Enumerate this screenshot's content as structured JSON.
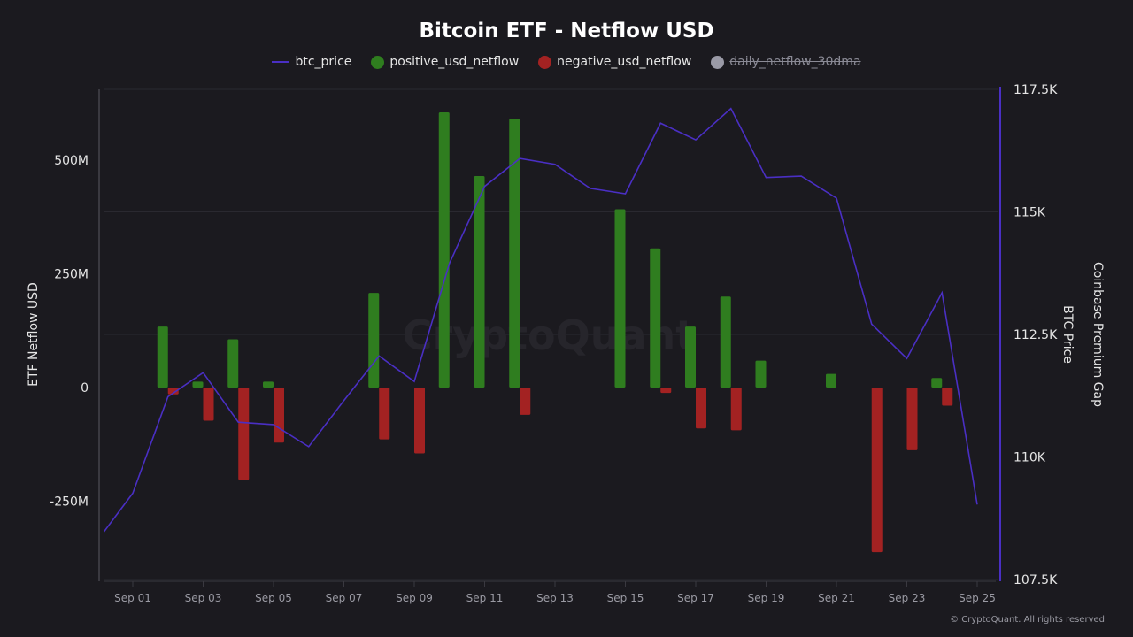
{
  "chart_data": {
    "type": "bar",
    "title": "Bitcoin ETF - Netflow USD",
    "legend": [
      {
        "name": "btc_price",
        "symbol": "line",
        "color": "#4a2fc4",
        "active": true
      },
      {
        "name": "positive_usd_netflow",
        "symbol": "circle",
        "color": "#2f7d1f",
        "active": true
      },
      {
        "name": "negative_usd_netflow",
        "symbol": "circle",
        "color": "#a32222",
        "active": true
      },
      {
        "name": "daily_netflow_30dma",
        "symbol": "circle",
        "color": "#9a9aa6",
        "active": false
      }
    ],
    "legend_placement": "top-center",
    "x_dates": [
      "2025-08-31",
      "2025-09-01",
      "2025-09-02",
      "2025-09-03",
      "2025-09-04",
      "2025-09-05",
      "2025-09-06",
      "2025-09-07",
      "2025-09-08",
      "2025-09-09",
      "2025-09-10",
      "2025-09-11",
      "2025-09-12",
      "2025-09-13",
      "2025-09-14",
      "2025-09-15",
      "2025-09-16",
      "2025-09-17",
      "2025-09-18",
      "2025-09-19",
      "2025-09-20",
      "2025-09-21",
      "2025-09-22",
      "2025-09-23",
      "2025-09-24",
      "2025-09-25"
    ],
    "x_tick_labels": [
      "Sep 01",
      "Sep 03",
      "Sep 05",
      "Sep 07",
      "Sep 09",
      "Sep 11",
      "Sep 13",
      "Sep 15",
      "Sep 17",
      "Sep 19",
      "Sep 21",
      "Sep 23",
      "Sep 25"
    ],
    "series": [
      {
        "name": "positive_usd_netflow",
        "axis": "left",
        "unit": "M USD",
        "type": "bar",
        "values": [
          0,
          0,
          134,
          13,
          106,
          13,
          0,
          0,
          208,
          0,
          605,
          465,
          591,
          0,
          0,
          392,
          306,
          134,
          200,
          59,
          0,
          30,
          0,
          0,
          21,
          0
        ]
      },
      {
        "name": "negative_usd_netflow",
        "axis": "left",
        "unit": "M USD",
        "type": "bar",
        "values": [
          0,
          0,
          -15,
          -73,
          -203,
          -121,
          0,
          0,
          -114,
          -145,
          0,
          0,
          -60,
          0,
          0,
          0,
          -12,
          -90,
          -94,
          0,
          0,
          0,
          -362,
          -138,
          -40,
          0
        ]
      },
      {
        "name": "btc_price",
        "axis": "right",
        "unit": "K USD",
        "type": "line",
        "values": [
          108.3,
          109.26,
          111.23,
          111.72,
          110.71,
          110.66,
          110.21,
          111.15,
          112.06,
          111.54,
          113.95,
          115.52,
          116.09,
          115.97,
          115.48,
          115.37,
          116.81,
          116.47,
          117.11,
          115.7,
          115.73,
          115.28,
          112.71,
          112.01,
          113.35,
          109.03
        ]
      }
    ],
    "left_axis": {
      "label": "ETF Netflow USD",
      "ylim": [
        -425,
        645
      ],
      "ticks": [
        -250,
        0,
        250,
        500
      ],
      "tick_labels": [
        "-250M",
        "0",
        "250M",
        "500M"
      ]
    },
    "right_axis": {
      "labels": [
        "BTC Price",
        "Coinbase Premium Gap"
      ],
      "ylim": [
        107.5,
        117.5
      ],
      "ticks": [
        107.5,
        110,
        112.5,
        115,
        117.5
      ],
      "tick_labels": [
        "107.5K",
        "110K",
        "112.5K",
        "115K",
        "117.5K"
      ]
    },
    "grid": true,
    "watermark": "CryptoQuant"
  },
  "footer": {
    "credit": "© CryptoQuant. All rights reserved"
  }
}
